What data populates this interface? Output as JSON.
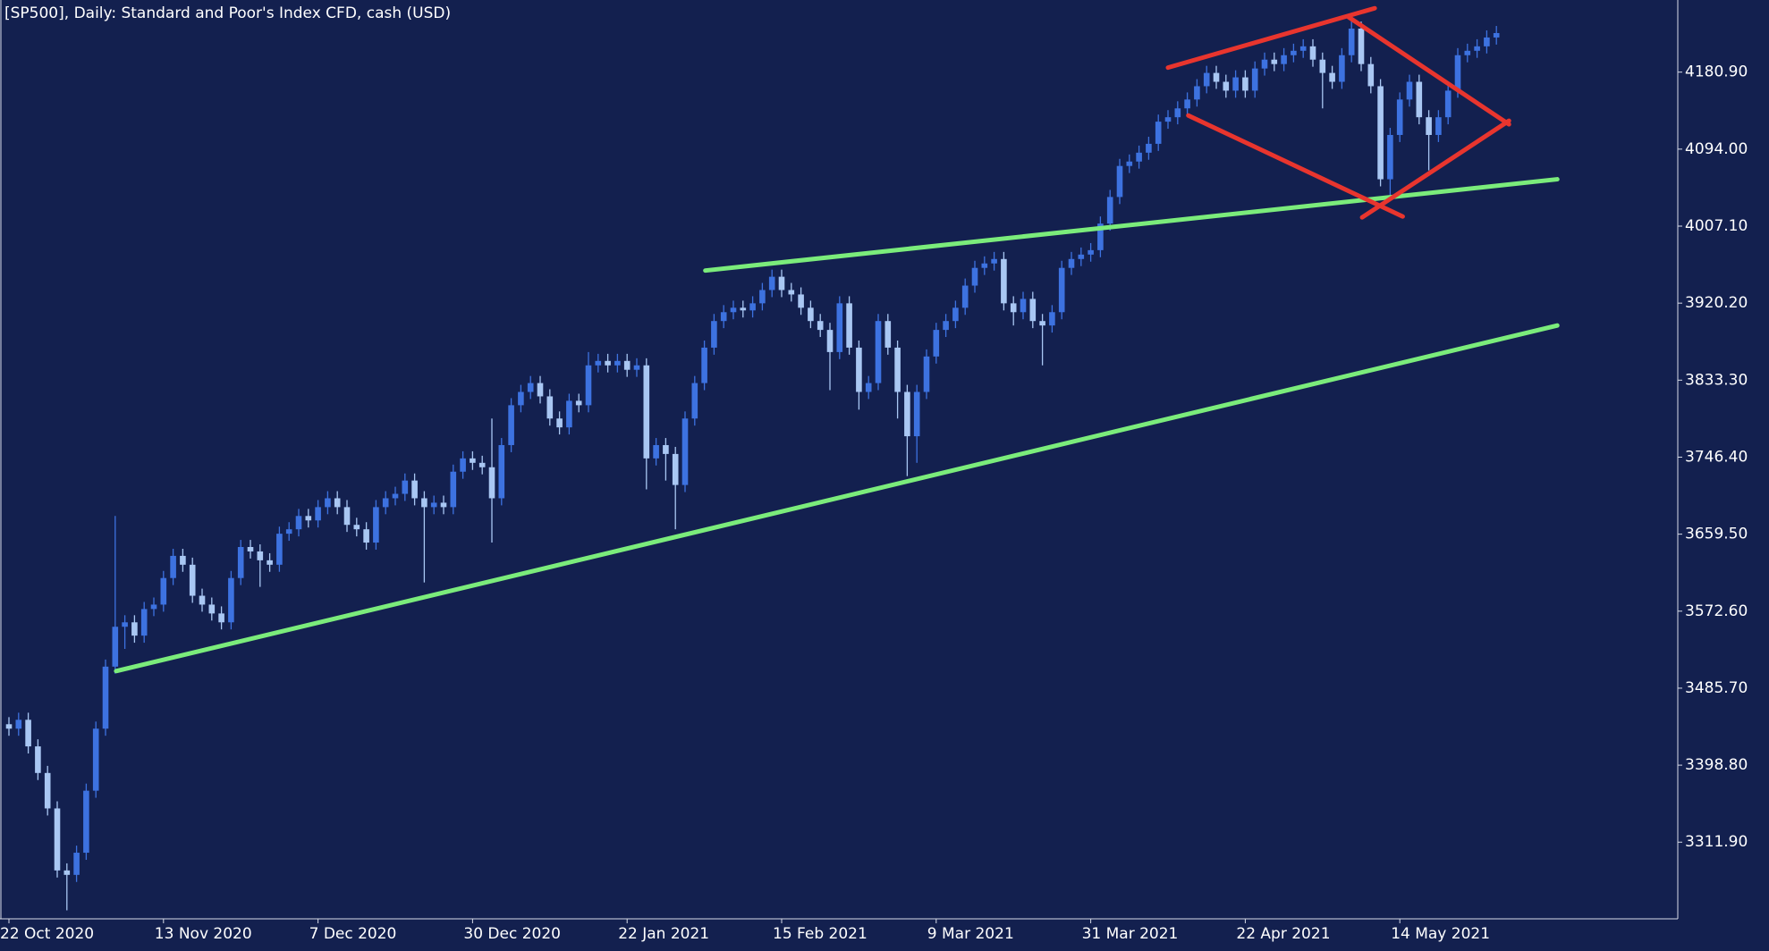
{
  "chart_data": {
    "type": "candlestick",
    "title": "[SP500], Daily:  Standard and Poor's Index CFD, cash (USD)",
    "up_color": "#3d72e0",
    "down_color": "#a9c7f3",
    "categories": [
      "22 Oct 2020",
      null,
      null,
      null,
      null,
      null,
      null,
      null,
      null,
      null,
      null,
      null,
      null,
      null,
      null,
      null,
      "13 Nov 2020",
      null,
      null,
      null,
      null,
      null,
      null,
      null,
      null,
      null,
      null,
      null,
      null,
      null,
      null,
      null,
      "7 Dec 2020",
      null,
      null,
      null,
      null,
      null,
      null,
      null,
      null,
      null,
      null,
      null,
      null,
      null,
      null,
      null,
      "30 Dec 2020",
      null,
      null,
      null,
      null,
      null,
      null,
      null,
      null,
      null,
      null,
      null,
      null,
      null,
      null,
      null,
      "22 Jan 2021",
      null,
      null,
      null,
      null,
      null,
      null,
      null,
      null,
      null,
      null,
      null,
      null,
      null,
      null,
      null,
      "15 Feb 2021",
      null,
      null,
      null,
      null,
      null,
      null,
      null,
      null,
      null,
      null,
      null,
      null,
      null,
      null,
      null,
      "9 Mar 2021",
      null,
      null,
      null,
      null,
      null,
      null,
      null,
      null,
      null,
      null,
      null,
      null,
      null,
      null,
      null,
      "31 Mar 2021",
      null,
      null,
      null,
      null,
      null,
      null,
      null,
      null,
      null,
      null,
      null,
      null,
      null,
      null,
      null,
      "22 Apr 2021",
      null,
      null,
      null,
      null,
      null,
      null,
      null,
      null,
      null,
      null,
      null,
      null,
      null,
      null,
      null,
      "14 May 2021",
      null,
      null,
      null,
      null,
      null,
      null,
      null,
      null,
      null,
      null
    ],
    "open": [
      3445,
      3440,
      3450,
      3420,
      3390,
      3350,
      3280,
      3275,
      3300,
      3370,
      3440,
      3510,
      3555,
      3560,
      3545,
      3575,
      3580,
      3610,
      3635,
      3625,
      3590,
      3580,
      3570,
      3560,
      3610,
      3645,
      3640,
      3630,
      3625,
      3660,
      3665,
      3680,
      3675,
      3690,
      3700,
      3690,
      3670,
      3665,
      3650,
      3690,
      3700,
      3705,
      3720,
      3700,
      3690,
      3695,
      3690,
      3730,
      3745,
      3740,
      3735,
      3700,
      3760,
      3805,
      3820,
      3830,
      3815,
      3790,
      3780,
      3810,
      3805,
      3850,
      3855,
      3850,
      3855,
      3845,
      3850,
      3745,
      3760,
      3750,
      3715,
      3790,
      3830,
      3870,
      3900,
      3910,
      3915,
      3912,
      3920,
      3935,
      3950,
      3935,
      3930,
      3915,
      3900,
      3890,
      3865,
      3920,
      3870,
      3820,
      3830,
      3900,
      3870,
      3820,
      3770,
      3820,
      3860,
      3890,
      3900,
      3915,
      3940,
      3960,
      3965,
      3970,
      3920,
      3910,
      3925,
      3900,
      3895,
      3910,
      3960,
      3970,
      3975,
      3980,
      4010,
      4040,
      4075,
      4080,
      4090,
      4100,
      4125,
      4130,
      4140,
      4150,
      4165,
      4180,
      4170,
      4160,
      4175,
      4160,
      4185,
      4195,
      4190,
      4200,
      4205,
      4210,
      4195,
      4180,
      4170,
      4200,
      4230,
      4190,
      4165,
      4060,
      4110,
      4150,
      4170,
      4130,
      4110,
      4130,
      4160,
      4200,
      4205,
      4210,
      4220
    ],
    "high": [
      3453,
      3458,
      3458,
      3428,
      3398,
      3358,
      3288,
      3308,
      3378,
      3448,
      3518,
      3680,
      3568,
      3568,
      3583,
      3588,
      3618,
      3643,
      3643,
      3633,
      3598,
      3588,
      3578,
      3618,
      3653,
      3653,
      3648,
      3638,
      3668,
      3673,
      3688,
      3688,
      3698,
      3708,
      3708,
      3698,
      3678,
      3673,
      3698,
      3708,
      3713,
      3728,
      3728,
      3708,
      3703,
      3703,
      3738,
      3753,
      3753,
      3748,
      3790,
      3768,
      3813,
      3828,
      3838,
      3838,
      3823,
      3798,
      3818,
      3818,
      3865,
      3863,
      3863,
      3863,
      3863,
      3858,
      3858,
      3768,
      3768,
      3758,
      3798,
      3838,
      3878,
      3908,
      3918,
      3923,
      3923,
      3928,
      3943,
      3958,
      3958,
      3943,
      3938,
      3923,
      3908,
      3898,
      3928,
      3928,
      3878,
      3838,
      3908,
      3908,
      3878,
      3828,
      3828,
      3868,
      3898,
      3908,
      3923,
      3948,
      3968,
      3973,
      3978,
      3978,
      3928,
      3933,
      3933,
      3908,
      3918,
      3968,
      3978,
      3983,
      3988,
      4018,
      4048,
      4083,
      4088,
      4098,
      4108,
      4133,
      4138,
      4148,
      4158,
      4173,
      4188,
      4188,
      4178,
      4183,
      4183,
      4193,
      4203,
      4203,
      4208,
      4213,
      4218,
      4218,
      4203,
      4188,
      4208,
      4240,
      4238,
      4198,
      4173,
      4118,
      4158,
      4178,
      4178,
      4138,
      4138,
      4168,
      4208,
      4213,
      4218,
      4228,
      4233
    ],
    "low": [
      3432,
      3432,
      3412,
      3382,
      3342,
      3272,
      3235,
      3267,
      3292,
      3362,
      3432,
      3502,
      3530,
      3537,
      3537,
      3567,
      3572,
      3602,
      3617,
      3582,
      3572,
      3562,
      3552,
      3552,
      3602,
      3632,
      3600,
      3617,
      3617,
      3652,
      3657,
      3667,
      3667,
      3682,
      3682,
      3662,
      3657,
      3642,
      3642,
      3682,
      3692,
      3697,
      3692,
      3605,
      3682,
      3682,
      3682,
      3722,
      3732,
      3727,
      3650,
      3692,
      3752,
      3797,
      3812,
      3807,
      3782,
      3772,
      3772,
      3797,
      3797,
      3842,
      3842,
      3842,
      3837,
      3837,
      3710,
      3737,
      3720,
      3665,
      3707,
      3782,
      3822,
      3862,
      3892,
      3902,
      3904,
      3904,
      3912,
      3927,
      3927,
      3922,
      3907,
      3892,
      3882,
      3822,
      3857,
      3862,
      3800,
      3812,
      3822,
      3862,
      3790,
      3725,
      3740,
      3812,
      3852,
      3882,
      3892,
      3907,
      3932,
      3952,
      3957,
      3912,
      3895,
      3902,
      3892,
      3850,
      3887,
      3902,
      3952,
      3962,
      3967,
      3972,
      4002,
      4032,
      4067,
      4072,
      4082,
      4092,
      4117,
      4122,
      4132,
      4142,
      4157,
      4162,
      4152,
      4152,
      4152,
      4152,
      4177,
      4182,
      4182,
      4192,
      4197,
      4187,
      4140,
      4162,
      4162,
      4192,
      4182,
      4157,
      4052,
      4040,
      4102,
      4142,
      4122,
      4070,
      4102,
      4122,
      4152,
      4192,
      4197,
      4202,
      4212
    ],
    "close": [
      3440,
      3450,
      3420,
      3390,
      3350,
      3280,
      3275,
      3300,
      3370,
      3440,
      3510,
      3555,
      3560,
      3545,
      3575,
      3580,
      3610,
      3635,
      3625,
      3590,
      3580,
      3570,
      3560,
      3610,
      3645,
      3640,
      3630,
      3625,
      3660,
      3665,
      3680,
      3675,
      3690,
      3700,
      3690,
      3670,
      3665,
      3650,
      3690,
      3700,
      3705,
      3720,
      3700,
      3690,
      3695,
      3690,
      3730,
      3745,
      3740,
      3735,
      3700,
      3760,
      3805,
      3820,
      3830,
      3815,
      3790,
      3780,
      3810,
      3805,
      3850,
      3855,
      3850,
      3855,
      3845,
      3850,
      3745,
      3760,
      3750,
      3715,
      3790,
      3830,
      3870,
      3900,
      3910,
      3915,
      3912,
      3920,
      3935,
      3950,
      3935,
      3930,
      3915,
      3900,
      3890,
      3865,
      3920,
      3870,
      3820,
      3830,
      3900,
      3870,
      3820,
      3770,
      3820,
      3860,
      3890,
      3900,
      3915,
      3940,
      3960,
      3965,
      3970,
      3920,
      3910,
      3925,
      3900,
      3895,
      3910,
      3960,
      3970,
      3975,
      3980,
      4010,
      4040,
      4075,
      4080,
      4090,
      4100,
      4125,
      4130,
      4140,
      4150,
      4165,
      4180,
      4170,
      4160,
      4175,
      4160,
      4185,
      4195,
      4190,
      4200,
      4205,
      4210,
      4195,
      4180,
      4170,
      4200,
      4230,
      4190,
      4165,
      4060,
      4110,
      4150,
      4170,
      4130,
      4110,
      4130,
      4160,
      4200,
      4205,
      4210,
      4220,
      4225
    ],
    "ylim": [
      3225.4,
      4262.3
    ],
    "yticks": [
      {
        "value": 3311.9,
        "label": "3311.90"
      },
      {
        "value": 3398.8,
        "label": "3398.80"
      },
      {
        "value": 3485.7,
        "label": "3485.70"
      },
      {
        "value": 3572.6,
        "label": "3572.60"
      },
      {
        "value": 3659.5,
        "label": "3659.50"
      },
      {
        "value": 3746.4,
        "label": "3746.40"
      },
      {
        "value": 3833.3,
        "label": "3833.30"
      },
      {
        "value": 3920.2,
        "label": "3920.20"
      },
      {
        "value": 4007.1,
        "label": "4007.10"
      },
      {
        "value": 4094,
        "label": "4094.00"
      },
      {
        "value": 4180.9,
        "label": "4180.90"
      }
    ],
    "trendlines": [
      {
        "color": "#7bec7b",
        "x": [
          11.1,
          160.3
        ],
        "y": [
          3505,
          3895
        ]
      },
      {
        "color": "#7bec7b",
        "x": [
          72.1,
          160.3
        ],
        "y": [
          3957,
          4060
        ]
      },
      {
        "color": "#e8352e",
        "x": [
          120.0,
          141.4
        ],
        "y": [
          4186,
          4253
        ]
      },
      {
        "color": "#e8352e",
        "x": [
          122.1,
          144.3
        ],
        "y": [
          4132,
          4018
        ]
      },
      {
        "color": "#e8352e",
        "x": [
          138.7,
          155.3
        ],
        "y": [
          4243,
          4122
        ]
      },
      {
        "color": "#e8352e",
        "x": [
          140.1,
          155.3
        ],
        "y": [
          4017,
          4126
        ]
      }
    ]
  }
}
